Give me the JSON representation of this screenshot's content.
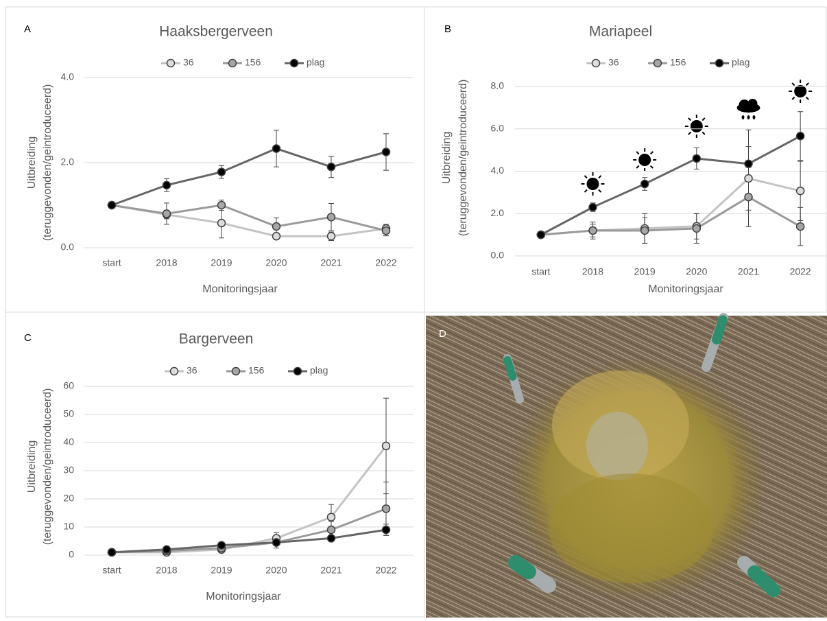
{
  "chart_data": [
    {
      "type": "line",
      "panel_label": "A",
      "title": "Haaksbergerveen",
      "xlabel": "Monitoringsjaar",
      "ylabel": [
        "Uitbreiding",
        "(teruggevonden/geintroduceerd)"
      ],
      "categories": [
        "start",
        "2018",
        "2019",
        "2020",
        "2021",
        "2022"
      ],
      "ylim": [
        0,
        4
      ],
      "yticks": [
        {
          "value": 0,
          "label": "0.0"
        },
        {
          "value": 2,
          "label": "2.0"
        },
        {
          "value": 4,
          "label": "4.0"
        }
      ],
      "grid": true,
      "series": [
        {
          "name": "36",
          "color": "#c3c3c3",
          "marker": "#dcdcdc",
          "values": [
            1.0,
            0.78,
            0.58,
            0.27,
            0.27,
            0.45
          ],
          "errors": [
            0,
            0.1,
            0.35,
            0.08,
            0.1,
            0.1
          ]
        },
        {
          "name": "156",
          "color": "#9a9a9a",
          "marker": "#a6a6a6",
          "values": [
            1.0,
            0.8,
            1.0,
            0.5,
            0.72,
            0.4
          ],
          "errors": [
            0,
            0.25,
            0.12,
            0.2,
            0.32,
            0.12
          ]
        },
        {
          "name": "plag",
          "color": "#666666",
          "marker": "#000000",
          "values": [
            1.0,
            1.47,
            1.78,
            2.33,
            1.9,
            2.25
          ],
          "errors": [
            0,
            0.15,
            0.15,
            0.43,
            0.25,
            0.43
          ]
        }
      ]
    },
    {
      "type": "line",
      "panel_label": "B",
      "title": "Mariapeel",
      "xlabel": "Monitoringsjaar",
      "ylabel": [
        "Uitbreiding",
        "(teruggevonden/geintroduceerd)"
      ],
      "categories": [
        "start",
        "2018",
        "2019",
        "2020",
        "2021",
        "2022"
      ],
      "ylim": [
        0,
        8
      ],
      "yticks": [
        {
          "value": 0,
          "label": "0.0"
        },
        {
          "value": 2,
          "label": "2.0"
        },
        {
          "value": 4,
          "label": "4.0"
        },
        {
          "value": 6,
          "label": "6.0"
        },
        {
          "value": 8,
          "label": "8.0"
        }
      ],
      "grid": true,
      "series": [
        {
          "name": "36",
          "color": "#c3c3c3",
          "marker": "#dcdcdc",
          "values": [
            1.0,
            1.2,
            1.3,
            1.4,
            3.66,
            3.07
          ],
          "errors": [
            0,
            0.4,
            0.7,
            0.6,
            1.5,
            1.4
          ]
        },
        {
          "name": "156",
          "color": "#9a9a9a",
          "marker": "#a6a6a6",
          "values": [
            1.0,
            1.2,
            1.2,
            1.3,
            2.78,
            1.39
          ],
          "errors": [
            0,
            0.3,
            0.6,
            0.7,
            1.4,
            0.9
          ]
        },
        {
          "name": "plag",
          "color": "#666666",
          "marker": "#000000",
          "values": [
            1.0,
            2.3,
            3.4,
            4.6,
            4.35,
            5.66
          ],
          "errors": [
            0,
            0.2,
            0.3,
            0.5,
            1.6,
            1.15
          ]
        }
      ]
    },
    {
      "type": "line",
      "panel_label": "C",
      "title": "Bargerveen",
      "xlabel": "Monitoringsjaar",
      "ylabel": [
        "Uitbreiding",
        "(teruggevonden/geintroduceerd)"
      ],
      "categories": [
        "start",
        "2018",
        "2019",
        "2020",
        "2021",
        "2022"
      ],
      "ylim": [
        0,
        60
      ],
      "yticks": [
        0,
        10,
        20,
        30,
        40,
        50,
        60
      ],
      "grid": true,
      "series": [
        {
          "name": "36",
          "color": "#c3c3c3",
          "marker": "#dcdcdc",
          "values": [
            1,
            1,
            2,
            6,
            13.5,
            38.8
          ],
          "errors": [
            0,
            0.5,
            1,
            2,
            4.5,
            17
          ]
        },
        {
          "name": "156",
          "color": "#9a9a9a",
          "marker": "#a6a6a6",
          "values": [
            1,
            1.5,
            2.5,
            4.5,
            9,
            16.5
          ],
          "errors": [
            0,
            0.5,
            1,
            2,
            3,
            9.5
          ]
        },
        {
          "name": "plag",
          "color": "#666666",
          "marker": "#000000",
          "values": [
            1,
            2,
            3.5,
            4.5,
            6,
            9
          ],
          "errors": [
            0,
            0.5,
            0.5,
            1,
            1,
            2
          ]
        }
      ]
    }
  ],
  "photo": {
    "panel_label": "D"
  }
}
